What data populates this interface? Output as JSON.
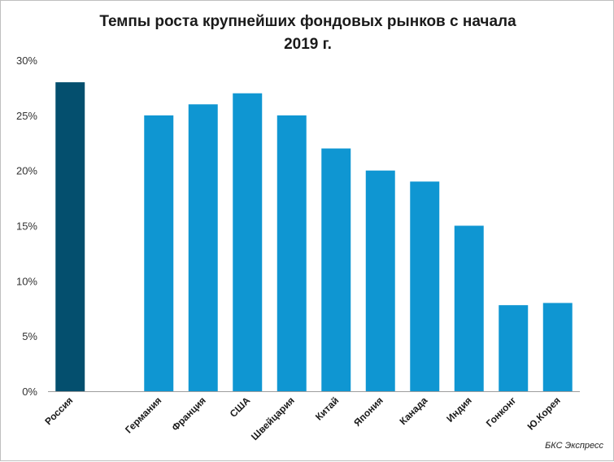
{
  "chart_data": {
    "type": "bar",
    "title": "Темпы роста крупнейших фондовых рынков с начала\n2019 г.",
    "xlabel": "",
    "ylabel": "",
    "ylim": [
      0,
      30
    ],
    "yticks": [
      0,
      5,
      10,
      15,
      20,
      25,
      30
    ],
    "ytick_labels": [
      "0%",
      "5%",
      "10%",
      "15%",
      "20%",
      "25%",
      "30%"
    ],
    "categories": [
      "Россия",
      "",
      "Германия",
      "Франция",
      "США",
      "Швейцария",
      "Китай",
      "Япония",
      "Канада",
      "Индия",
      "Гонконг",
      "Ю.Корея"
    ],
    "values": [
      28,
      null,
      25,
      26,
      27,
      25,
      22,
      20,
      19,
      15,
      7.8,
      8
    ],
    "colors": {
      "highlight": "#044f6e",
      "bar": "#0f96d2",
      "axis": "#9e9e9e"
    },
    "highlight_index": 0,
    "grid": false,
    "legend": "none"
  },
  "source": "БКС Экспресс"
}
